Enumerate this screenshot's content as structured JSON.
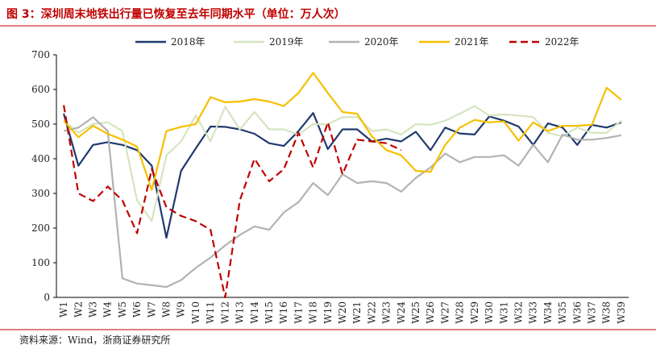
{
  "chart_data": {
    "type": "line",
    "title": "图 3：深圳周末地铁出行量已恢复至去年同期水平（单位：万人次）",
    "source": "资料来源：Wind，浙商证券研究所",
    "categories": [
      "W1",
      "W2",
      "W3",
      "W4",
      "W5",
      "W6",
      "W7",
      "W8",
      "W9",
      "W10",
      "W11",
      "W12",
      "W13",
      "W14",
      "W15",
      "W16",
      "W17",
      "W18",
      "W19",
      "W20",
      "W21",
      "W22",
      "W23",
      "W24",
      "W25",
      "W26",
      "W27",
      "W28",
      "W29",
      "W30",
      "W31",
      "W32",
      "W33",
      "W34",
      "W35",
      "W36",
      "W37",
      "W38",
      "W39"
    ],
    "ylim": [
      0,
      700
    ],
    "yticks": [
      0,
      100,
      200,
      300,
      400,
      500,
      600,
      700
    ],
    "legend": "top",
    "series": [
      {
        "name": "2018年",
        "color": "#1f3a6e",
        "dashed": false,
        "values": [
          530,
          380,
          440,
          448,
          440,
          425,
          380,
          172,
          365,
          430,
          493,
          492,
          485,
          472,
          445,
          437,
          480,
          532,
          428,
          485,
          485,
          450,
          458,
          450,
          478,
          425,
          490,
          473,
          470,
          522,
          510,
          493,
          440,
          502,
          490,
          440,
          498,
          490,
          505
        ]
      },
      {
        "name": "2019年",
        "color": "#d6e4c0",
        "dashed": false,
        "values": [
          510,
          475,
          500,
          505,
          480,
          280,
          220,
          410,
          450,
          525,
          450,
          550,
          485,
          535,
          485,
          485,
          470,
          500,
          500,
          520,
          520,
          480,
          485,
          470,
          500,
          498,
          510,
          530,
          552,
          525,
          528,
          525,
          520,
          475,
          465,
          490,
          475,
          475,
          510
        ]
      },
      {
        "name": "2020年",
        "color": "#b3b3b3",
        "dashed": false,
        "values": [
          480,
          490,
          520,
          480,
          55,
          40,
          35,
          30,
          50,
          85,
          115,
          150,
          180,
          205,
          195,
          245,
          275,
          330,
          295,
          355,
          330,
          335,
          330,
          305,
          345,
          375,
          415,
          390,
          405,
          405,
          410,
          380,
          440,
          390,
          470,
          455,
          455,
          460,
          468
        ]
      },
      {
        "name": "2021年",
        "color": "#f5c000",
        "dashed": false,
        "values": [
          510,
          462,
          495,
          472,
          455,
          435,
          310,
          480,
          492,
          500,
          578,
          563,
          565,
          572,
          565,
          552,
          590,
          648,
          590,
          535,
          530,
          465,
          425,
          410,
          365,
          362,
          440,
          490,
          512,
          505,
          508,
          452,
          505,
          480,
          495,
          495,
          498,
          605,
          570
        ]
      },
      {
        "name": "2022年",
        "color": "#c00000",
        "dashed": true,
        "values": [
          555,
          300,
          278,
          320,
          280,
          185,
          370,
          260,
          235,
          220,
          195,
          0,
          280,
          400,
          335,
          370,
          475,
          375,
          505,
          355,
          455,
          450,
          445,
          425,
          null,
          null,
          null,
          null,
          null,
          null,
          null,
          null,
          null,
          null,
          null,
          null,
          null,
          null,
          null
        ]
      }
    ]
  }
}
